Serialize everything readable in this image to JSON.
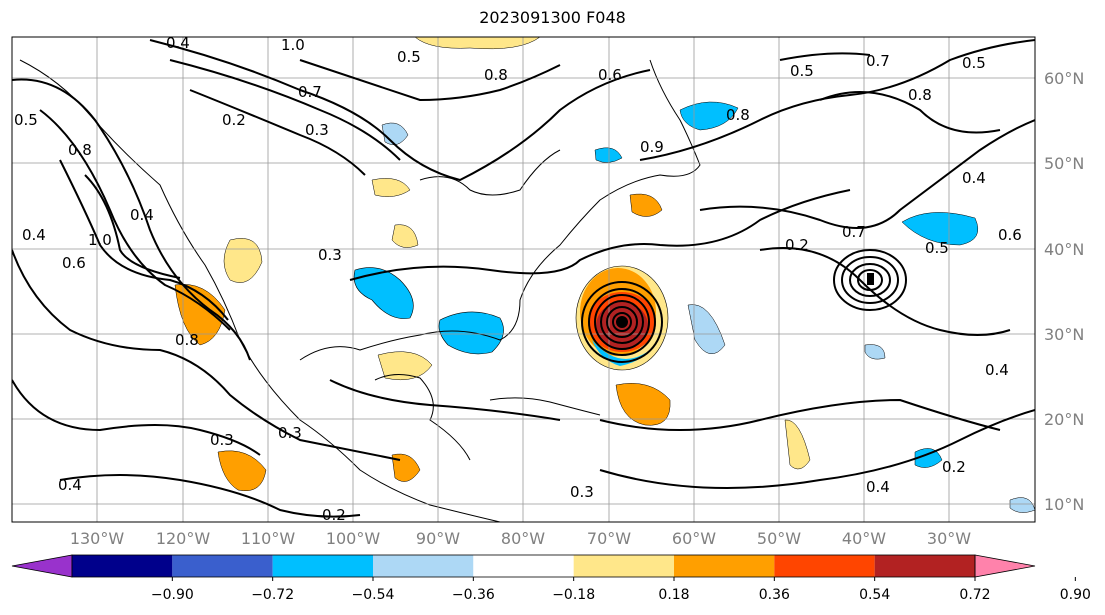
{
  "title": "2023091300 F048",
  "lat_labels": [
    "60°N",
    "50°N",
    "40°N",
    "30°N",
    "20°N",
    "10°N"
  ],
  "lon_labels": [
    "130°W",
    "120°W",
    "110°W",
    "100°W",
    "90°W",
    "80°W",
    "70°W",
    "60°W",
    "50°W",
    "40°W",
    "30°W"
  ],
  "colorbar": {
    "ticks": [
      "−0.90",
      "−0.72",
      "−0.54",
      "−0.36",
      "−0.18",
      "0.18",
      "0.36",
      "0.54",
      "0.72",
      "0.90"
    ],
    "colors": [
      "#9932cc",
      "#00008b",
      "#3a5fcd",
      "#00bfff",
      "#add8f5",
      "#ffffff",
      "#ffe78a",
      "#ff9f00",
      "#ff4500",
      "#b22222",
      "#ff82ab"
    ]
  },
  "contour_labels": [
    "0.4",
    "1.0",
    "0.7",
    "0.5",
    "0.2",
    "0.3",
    "0.8",
    "0.6",
    "0.5",
    "0.7",
    "0.8",
    "0.5",
    "0.4",
    "0.7",
    "0.5",
    "0.6",
    "0.4",
    "0.8",
    "0.9",
    "1.0",
    "0.4",
    "0.6",
    "0.4",
    "0.8",
    "0.5",
    "0.3",
    "0.3",
    "0.4",
    "0.2",
    "0.2",
    "0.4",
    "0.3",
    "0.8",
    "0.2",
    "0.3"
  ]
}
